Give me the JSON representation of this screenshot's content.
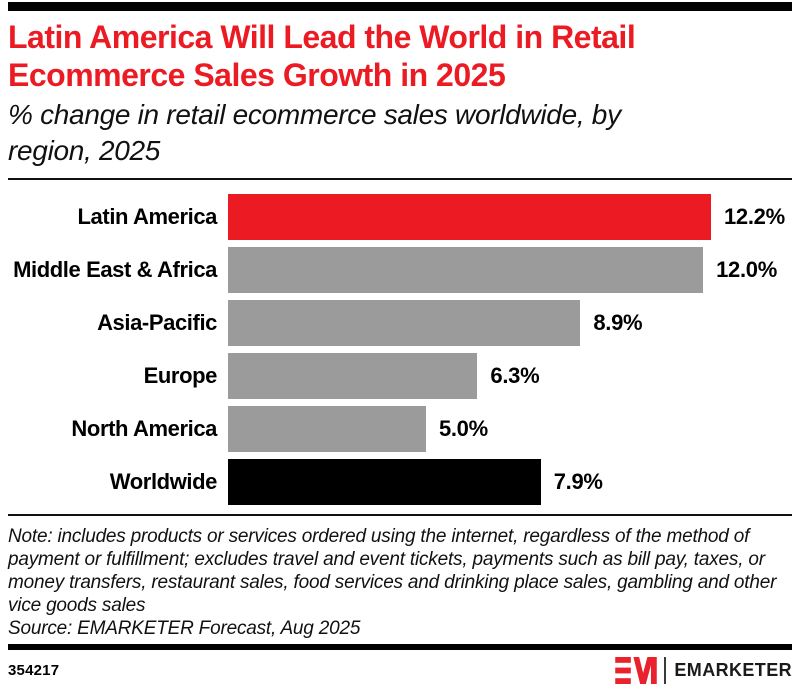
{
  "colors": {
    "accent_red": "#EC1B23",
    "bar_gray": "#9B9B9B",
    "bar_black": "#000000",
    "rule_black": "#000000"
  },
  "header": {
    "title": "Latin America Will Lead the World in Retail Ecommerce Sales Growth in 2025",
    "subtitle": "% change in retail ecommerce sales worldwide, by region, 2025"
  },
  "chart_data": {
    "type": "bar",
    "orientation": "horizontal",
    "title": "Latin America Will Lead the World in Retail Ecommerce Sales Growth in 2025",
    "subtitle": "% change in retail ecommerce sales worldwide, by region, 2025",
    "categories": [
      "Latin America",
      "Middle East & Africa",
      "Asia-Pacific",
      "Europe",
      "North America",
      "Worldwide"
    ],
    "values": [
      12.2,
      12.0,
      8.9,
      6.3,
      5.0,
      7.9
    ],
    "value_labels": [
      "12.2%",
      "12.0%",
      "8.9%",
      "6.3%",
      "5.0%",
      "7.9%"
    ],
    "bar_colors": [
      "#EC1B23",
      "#9B9B9B",
      "#9B9B9B",
      "#9B9B9B",
      "#9B9B9B",
      "#000000"
    ],
    "xlabel": "",
    "ylabel": "",
    "xlim": [
      0,
      12.2
    ],
    "grid": false,
    "legend": false
  },
  "footnote": {
    "note": "Note: includes products or services ordered using the internet, regardless of the method of payment or fulfillment; excludes travel and event tickets, payments such as bill pay, taxes, or money transfers, restaurant sales, food services and drinking place sales, gambling and other vice goods sales",
    "source": "Source: EMARKETER Forecast, Aug 2025"
  },
  "footer": {
    "chart_id": "354217",
    "brand": "EMARKETER"
  }
}
